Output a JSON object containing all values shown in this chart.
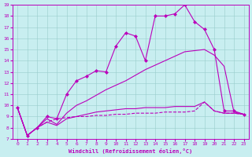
{
  "xlabel": "Windchill (Refroidissement éolien,°C)",
  "background_color": "#c8eef0",
  "line_color": "#bb00bb",
  "grid_color": "#99cccc",
  "xlim": [
    -0.5,
    23.5
  ],
  "ylim": [
    7,
    19
  ],
  "xticks": [
    0,
    1,
    2,
    3,
    4,
    5,
    6,
    7,
    8,
    9,
    10,
    11,
    12,
    13,
    14,
    15,
    16,
    17,
    18,
    19,
    20,
    21,
    22,
    23
  ],
  "yticks": [
    7,
    8,
    9,
    10,
    11,
    12,
    13,
    14,
    15,
    16,
    17,
    18,
    19
  ],
  "series": [
    {
      "x": [
        0,
        1,
        2,
        3,
        4,
        5,
        6,
        7,
        8,
        9,
        10,
        11,
        12,
        13,
        14,
        15,
        16,
        17,
        18,
        19,
        20,
        21,
        22,
        23
      ],
      "y": [
        9.8,
        7.3,
        8.0,
        8.5,
        8.8,
        8.9,
        9.0,
        9.0,
        9.1,
        9.1,
        9.2,
        9.2,
        9.3,
        9.3,
        9.3,
        9.4,
        9.4,
        9.4,
        9.5,
        10.3,
        9.5,
        9.3,
        9.3,
        9.2
      ],
      "marker": null,
      "linewidth": 0.8,
      "linestyle": "--",
      "markersize": 2
    },
    {
      "x": [
        0,
        1,
        2,
        3,
        4,
        5,
        6,
        7,
        8,
        9,
        10,
        11,
        12,
        13,
        14,
        15,
        16,
        17,
        18,
        19,
        20,
        21,
        22,
        23
      ],
      "y": [
        9.8,
        7.3,
        8.0,
        8.5,
        8.2,
        8.8,
        9.0,
        9.2,
        9.4,
        9.5,
        9.6,
        9.7,
        9.7,
        9.8,
        9.8,
        9.8,
        9.9,
        9.9,
        9.9,
        10.3,
        9.5,
        9.3,
        9.3,
        9.2
      ],
      "marker": null,
      "linewidth": 0.8,
      "linestyle": "-",
      "markersize": 2
    },
    {
      "x": [
        0,
        1,
        2,
        3,
        4,
        5,
        6,
        7,
        8,
        9,
        10,
        11,
        12,
        13,
        14,
        15,
        16,
        17,
        18,
        19,
        20,
        21,
        22,
        23
      ],
      "y": [
        9.8,
        7.3,
        8.0,
        8.8,
        8.3,
        9.3,
        10.0,
        10.4,
        10.9,
        11.4,
        11.8,
        12.2,
        12.7,
        13.2,
        13.6,
        14.0,
        14.4,
        14.8,
        14.9,
        15.0,
        14.5,
        13.5,
        9.4,
        9.2
      ],
      "marker": null,
      "linewidth": 0.8,
      "linestyle": "-",
      "markersize": 2
    },
    {
      "x": [
        0,
        1,
        2,
        3,
        4,
        5,
        6,
        7,
        8,
        9,
        10,
        11,
        12,
        13,
        14,
        15,
        16,
        17,
        18,
        19,
        20,
        21,
        22,
        23
      ],
      "y": [
        9.8,
        7.3,
        8.0,
        9.0,
        8.8,
        11.0,
        12.2,
        12.6,
        13.1,
        13.0,
        15.3,
        16.5,
        16.2,
        14.0,
        18.0,
        18.0,
        18.2,
        19.0,
        17.5,
        16.8,
        15.0,
        9.5,
        9.5,
        9.2
      ],
      "marker": "D",
      "linewidth": 0.8,
      "linestyle": "-",
      "markersize": 2
    }
  ]
}
